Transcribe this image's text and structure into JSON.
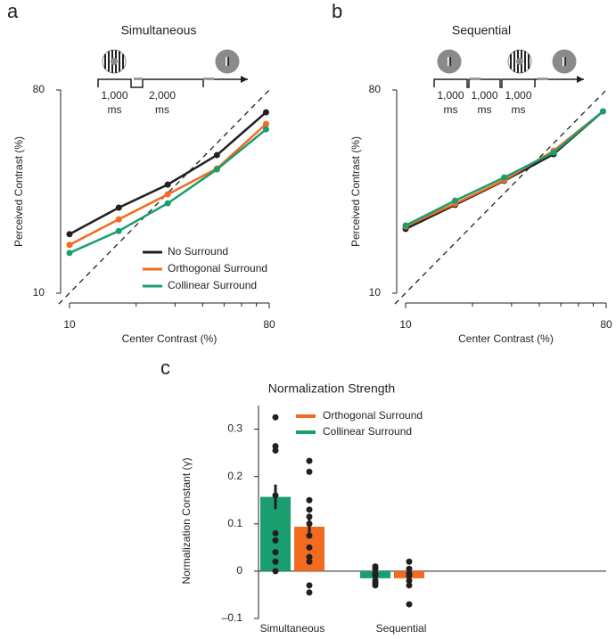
{
  "chart_data": [
    {
      "type": "line",
      "panel": "a",
      "title": "Simultaneous",
      "xlabel": "Center Contrast (%)",
      "ylabel": "Perceived Contrast (%)",
      "xscale": "log",
      "yscale": "log",
      "xlim": [
        10,
        80
      ],
      "ylim": [
        10,
        80
      ],
      "xticks": [
        10,
        80
      ],
      "xminorticks": [
        20,
        30,
        40,
        50,
        60,
        70
      ],
      "yticks": [
        10,
        80
      ],
      "identity_line": true,
      "legend": "lower right",
      "timeline": [
        "1,000",
        "2,000"
      ],
      "timeline_unit": "ms",
      "x": [
        10,
        16.7,
        27.8,
        46.4,
        77.4
      ],
      "series": [
        {
          "name": "No Surround",
          "color": "#231f20",
          "values": [
            18.3,
            24.0,
            30.4,
            41.1,
            63.7
          ]
        },
        {
          "name": "Orthogonal Surround",
          "color": "#f26b21",
          "values": [
            16.4,
            21.3,
            27.5,
            35.8,
            56.5
          ]
        },
        {
          "name": "Collinear Surround",
          "color": "#1b9e6f",
          "values": [
            15.1,
            18.9,
            25.1,
            35.5,
            53.5
          ]
        }
      ]
    },
    {
      "type": "line",
      "panel": "b",
      "title": "Sequential",
      "xlabel": "Center Contrast (%)",
      "ylabel": "Perceived Contrast (%)",
      "xscale": "log",
      "yscale": "log",
      "xlim": [
        10,
        80
      ],
      "ylim": [
        10,
        80
      ],
      "xticks": [
        10,
        80
      ],
      "xminorticks": [
        20,
        30,
        40,
        50,
        60,
        70
      ],
      "yticks": [
        10,
        80
      ],
      "identity_line": true,
      "timeline": [
        "1,000",
        "1,000",
        "1,000"
      ],
      "timeline_unit": "ms",
      "x": [
        10,
        16.7,
        27.8,
        46.4,
        77.4
      ],
      "series": [
        {
          "color": "#231f20",
          "values": [
            19.3,
            24.7,
            31.6,
            41.5,
            64.3
          ]
        },
        {
          "color": "#f26b21",
          "values": [
            19.8,
            25.0,
            31.8,
            43.0,
            64.3
          ]
        },
        {
          "color": "#1b9e6f",
          "values": [
            20.0,
            25.8,
            32.7,
            42.2,
            64.3
          ]
        }
      ]
    },
    {
      "type": "bar",
      "panel": "c",
      "title": "Normalization Strength",
      "ylabel": "Normalization Constant (γ)",
      "ylim": [
        -0.1,
        0.35
      ],
      "yticks": [
        {
          "value": -0.1,
          "label": "–0.1"
        },
        0,
        0.1,
        0.2,
        0.3
      ],
      "legend": "upper right",
      "categories": [
        "Simultaneous",
        "Sequential"
      ],
      "series": [
        {
          "name": "Collinear Surround",
          "color": "#1b9e6f",
          "values": [
            0.157,
            -0.015
          ],
          "errors": [
            0.026,
            0.006
          ],
          "points": [
            [
              0.325,
              0.264,
              0.255,
              0.16,
              0.08,
              0.065,
              0.04,
              0.02,
              0.0
            ],
            [
              0.01,
              0.005,
              -0.005,
              -0.01,
              -0.02,
              -0.025,
              -0.03
            ]
          ]
        },
        {
          "name": "Orthogonal Surround",
          "color": "#f26b21",
          "values": [
            0.094,
            -0.015
          ],
          "errors": [
            0.025,
            0.006
          ],
          "points": [
            [
              0.233,
              0.21,
              0.15,
              0.13,
              0.115,
              0.1,
              0.075,
              0.05,
              0.03,
              0.02,
              -0.03,
              -0.045
            ],
            [
              0.02,
              0.005,
              -0.005,
              -0.01,
              -0.02,
              -0.03,
              -0.07
            ]
          ]
        }
      ]
    }
  ]
}
